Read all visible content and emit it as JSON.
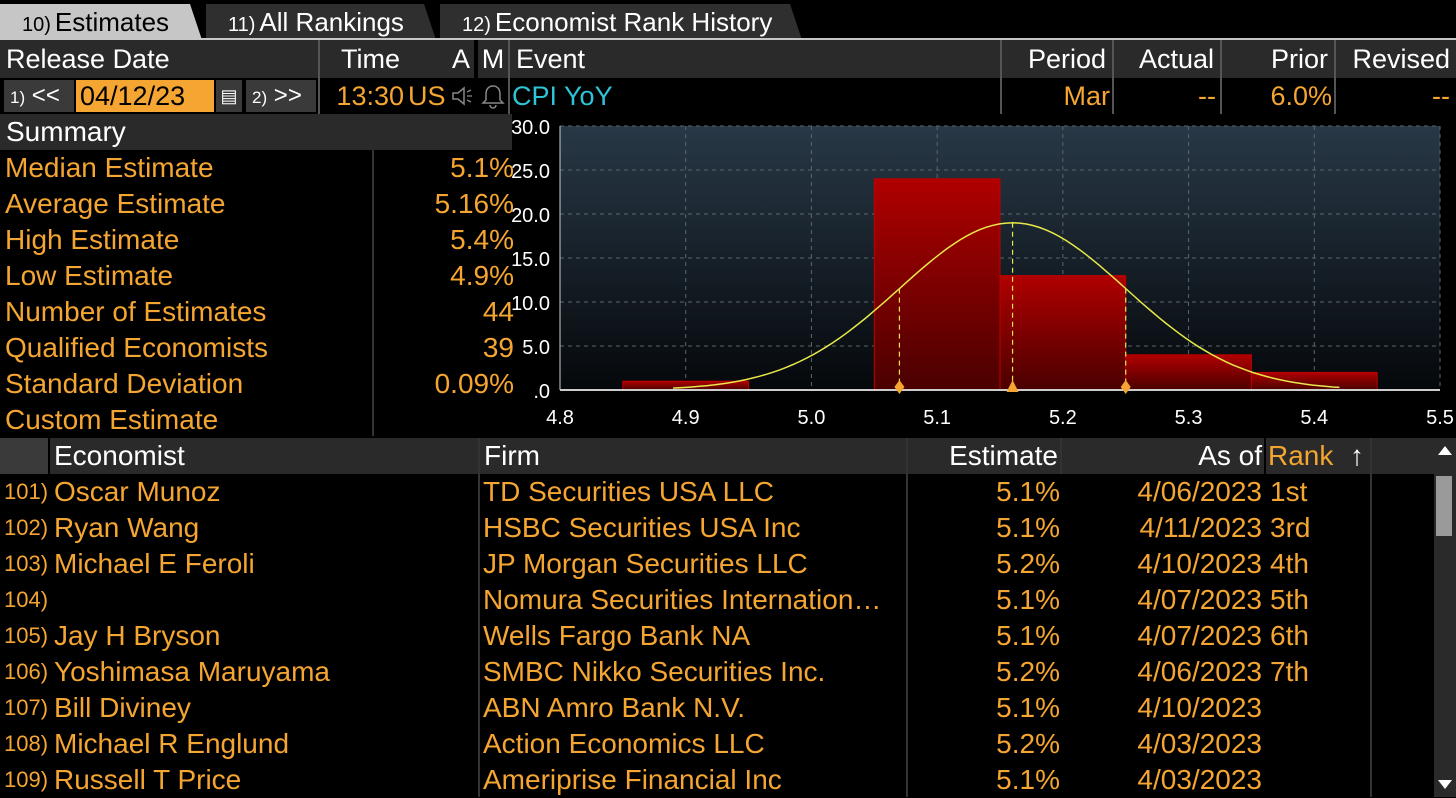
{
  "tabs": [
    {
      "num": "10)",
      "label": "Estimates"
    },
    {
      "num": "11)",
      "label": "All Rankings"
    },
    {
      "num": "12)",
      "label": "Economist Rank History"
    }
  ],
  "header": {
    "release_date": "Release Date",
    "time": "Time",
    "a": "A",
    "m": "M",
    "event": "Event",
    "period": "Period",
    "actual": "Actual",
    "prior": "Prior",
    "revised": "Revised"
  },
  "release": {
    "prev_num": "1)",
    "prev_label": "<<",
    "date": "04/12/23",
    "next_num": "2)",
    "next_label": ">>",
    "time": "13:30",
    "country": "US",
    "event": "CPI YoY",
    "period": "Mar",
    "actual": "--",
    "prior": "6.0%",
    "revised": "--"
  },
  "summary": {
    "title": "Summary",
    "rows": [
      {
        "label": "Median Estimate",
        "value": "5.1%"
      },
      {
        "label": "Average Estimate",
        "value": "5.16%"
      },
      {
        "label": "High Estimate",
        "value": "5.4%"
      },
      {
        "label": "Low Estimate",
        "value": "4.9%"
      },
      {
        "label": "Number of Estimates",
        "value": "44"
      },
      {
        "label": "Qualified Economists",
        "value": "39"
      },
      {
        "label": "Standard Deviation",
        "value": "0.09%"
      },
      {
        "label": "Custom Estimate",
        "value": ""
      }
    ]
  },
  "chart_data": {
    "type": "bar",
    "title": "",
    "xlabel": "",
    "ylabel": "",
    "xlim": [
      4.8,
      5.5
    ],
    "ylim": [
      0,
      30
    ],
    "x_ticks": [
      "4.8",
      "4.9",
      "5.0",
      "5.1",
      "5.2",
      "5.3",
      "5.4",
      "5.5"
    ],
    "y_ticks": [
      ".0",
      "5.0",
      "10.0",
      "15.0",
      "20.0",
      "25.0",
      "30.0"
    ],
    "bins": [
      {
        "start": 4.85,
        "end": 4.95,
        "value": 1
      },
      {
        "start": 5.05,
        "end": 5.15,
        "value": 24
      },
      {
        "start": 5.15,
        "end": 5.25,
        "value": 13
      },
      {
        "start": 5.25,
        "end": 5.35,
        "value": 4
      },
      {
        "start": 5.35,
        "end": 5.45,
        "value": 2
      }
    ],
    "normal_curve": {
      "mean": 5.16,
      "sd": 0.09,
      "peak": 19,
      "range": [
        4.89,
        5.42
      ]
    },
    "markers": [
      5.07,
      5.16,
      5.25
    ],
    "grid": true,
    "colors": {
      "bar": "#a00000",
      "curve": "#e8e84a",
      "marker": "#f5a531",
      "plot_bg": "#1e2a34"
    }
  },
  "table": {
    "headers": {
      "economist": "Economist",
      "firm": "Firm",
      "estimate": "Estimate",
      "as_of": "As of",
      "rank": "Rank",
      "sort": "↑"
    },
    "rows": [
      {
        "num": "101)",
        "economist": "Oscar Munoz",
        "firm": "TD Securities USA LLC",
        "estimate": "5.1%",
        "as_of": "4/06/2023",
        "rank": "1st"
      },
      {
        "num": "102)",
        "economist": "Ryan Wang",
        "firm": "HSBC Securities USA Inc",
        "estimate": "5.1%",
        "as_of": "4/11/2023",
        "rank": "3rd"
      },
      {
        "num": "103)",
        "economist": "Michael E Feroli",
        "firm": "JP Morgan Securities LLC",
        "estimate": "5.2%",
        "as_of": "4/10/2023",
        "rank": "4th"
      },
      {
        "num": "104)",
        "economist": "",
        "firm": "Nomura Securities Internation…",
        "estimate": "5.1%",
        "as_of": "4/07/2023",
        "rank": "5th"
      },
      {
        "num": "105)",
        "economist": "Jay H Bryson",
        "firm": "Wells Fargo Bank NA",
        "estimate": "5.1%",
        "as_of": "4/07/2023",
        "rank": "6th"
      },
      {
        "num": "106)",
        "economist": "Yoshimasa Maruyama",
        "firm": "SMBC Nikko Securities Inc.",
        "estimate": "5.2%",
        "as_of": "4/06/2023",
        "rank": "7th"
      },
      {
        "num": "107)",
        "economist": "Bill Diviney",
        "firm": "ABN Amro Bank N.V.",
        "estimate": "5.1%",
        "as_of": "4/10/2023",
        "rank": ""
      },
      {
        "num": "108)",
        "economist": "Michael R Englund",
        "firm": "Action Economics LLC",
        "estimate": "5.2%",
        "as_of": "4/03/2023",
        "rank": ""
      },
      {
        "num": "109)",
        "economist": "Russell T Price",
        "firm": "Ameriprise Financial Inc",
        "estimate": "5.1%",
        "as_of": "4/03/2023",
        "rank": ""
      }
    ]
  }
}
